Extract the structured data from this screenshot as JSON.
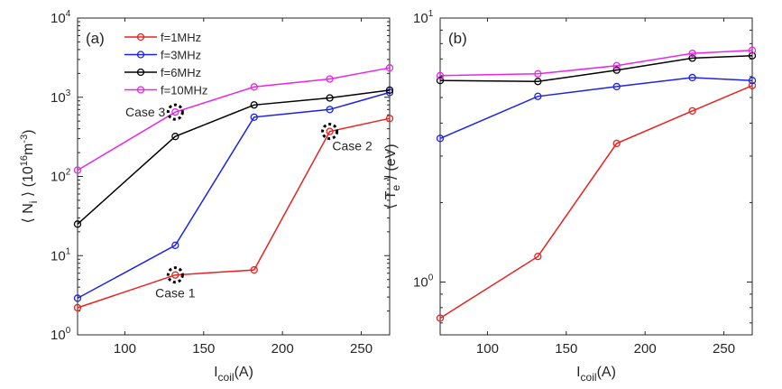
{
  "chart_data": [
    {
      "type": "line",
      "panel_label": "(a)",
      "xlabel": {
        "main": "I",
        "sub": "coil",
        "unit": "(A)"
      },
      "ylabel": {
        "bra": "⟨",
        "main": "N",
        "sub": "i",
        "ket": "⟩",
        "unit_pre": "(10",
        "unit_exp": "16",
        "unit_mid": "m",
        "unit_exp2": "-3",
        "unit_post": ")"
      },
      "xlim": [
        70,
        268
      ],
      "ylim_log10": [
        0,
        4
      ],
      "yscale": "log",
      "xticks": [
        100,
        150,
        200,
        250
      ],
      "xtick_labels": [
        "100",
        "150",
        "200",
        "250"
      ],
      "yticks_exp": [
        0,
        1,
        2,
        3,
        4
      ],
      "ytick_base": "10",
      "ytick_exps": [
        "0",
        "1",
        "2",
        "3",
        "4"
      ],
      "legend": {
        "position": "top-left",
        "entries": [
          "f=1MHz",
          "f=3MHz",
          "f=6MHz",
          "f=10MHz"
        ]
      },
      "x": [
        70,
        132,
        182,
        230,
        268
      ],
      "series": [
        {
          "name": "f=1MHz",
          "color": "#e8221f",
          "values": [
            2.2,
            5.7,
            6.6,
            370,
            540
          ]
        },
        {
          "name": "f=3MHz",
          "color": "#1c23e6",
          "values": [
            2.9,
            13.5,
            560,
            700,
            1150
          ]
        },
        {
          "name": "f=6MHz",
          "color": "#000000",
          "values": [
            25,
            320,
            800,
            980,
            1230
          ]
        },
        {
          "name": "f=10MHz",
          "color": "#e825e8",
          "values": [
            120,
            650,
            1350,
            1700,
            2350
          ]
        }
      ],
      "annotations": [
        {
          "text": "Case 1",
          "x": 132,
          "y": 5.7,
          "anchor": "below"
        },
        {
          "text": "Case 2",
          "x": 230,
          "y": 370,
          "anchor": "below-right"
        },
        {
          "text": "Case 3",
          "x": 132,
          "y": 650,
          "anchor": "left"
        }
      ]
    },
    {
      "type": "line",
      "panel_label": "(b)",
      "xlabel": {
        "main": "I",
        "sub": "coil",
        "unit": "(A)"
      },
      "ylabel": {
        "bra": "⟨",
        "main": "T",
        "sub": "e",
        "ket": "⟩",
        "unit": "(eV)"
      },
      "xlim": [
        70,
        268
      ],
      "ylim_log10": [
        -0.2,
        1
      ],
      "yscale": "log",
      "xticks": [
        100,
        150,
        200,
        250
      ],
      "xtick_labels": [
        "100",
        "150",
        "200",
        "250"
      ],
      "yticks_exp": [
        0,
        1
      ],
      "ytick_base": "10",
      "ytick_exps": [
        "0",
        "1"
      ],
      "x": [
        70,
        132,
        182,
        230,
        268
      ],
      "series": [
        {
          "name": "f=1MHz",
          "color": "#e8221f",
          "values": [
            0.73,
            1.25,
            3.35,
            4.45,
            5.55
          ]
        },
        {
          "name": "f=3MHz",
          "color": "#1c23e6",
          "values": [
            3.5,
            5.05,
            5.5,
            5.95,
            5.8
          ]
        },
        {
          "name": "f=6MHz",
          "color": "#000000",
          "values": [
            5.8,
            5.75,
            6.35,
            7.05,
            7.2
          ]
        },
        {
          "name": "f=10MHz",
          "color": "#e825e8",
          "values": [
            6.05,
            6.15,
            6.6,
            7.35,
            7.55
          ]
        }
      ]
    }
  ]
}
